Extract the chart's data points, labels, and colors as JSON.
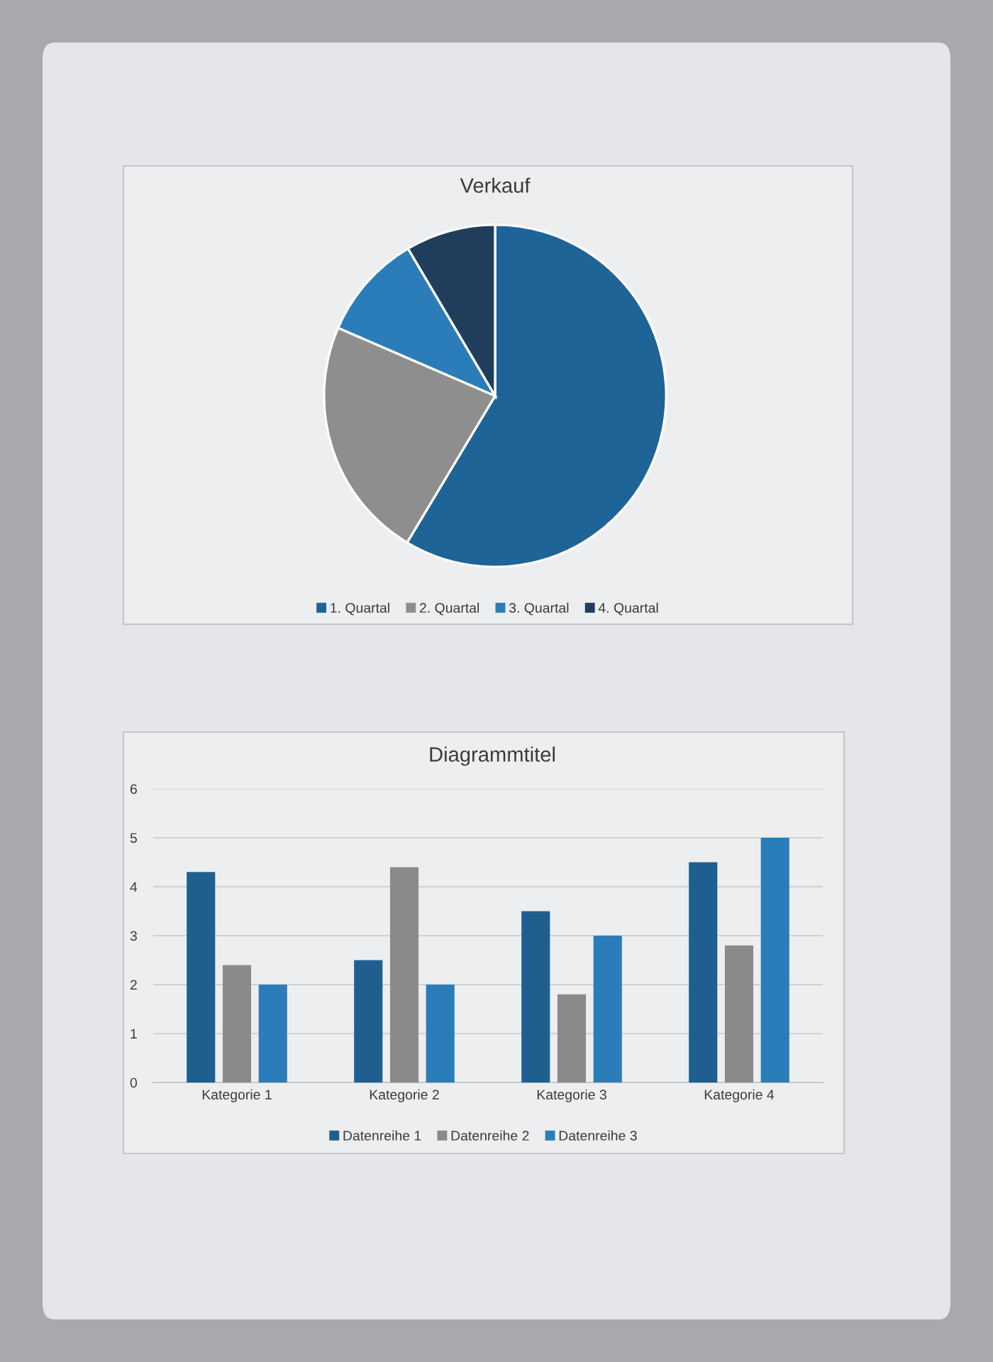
{
  "chart_data": [
    {
      "type": "pie",
      "title": "Verkauf",
      "categories": [
        "1. Quartal",
        "2. Quartal",
        "3. Quartal",
        "4. Quartal"
      ],
      "values": [
        58.6,
        22.9,
        10.0,
        8.5
      ],
      "colors": [
        "#1f6496",
        "#8e8e8e",
        "#2a7db8",
        "#213d5c"
      ],
      "legend": "bottom"
    },
    {
      "type": "bar",
      "title": "Diagrammtitel",
      "categories": [
        "Kategorie 1",
        "Kategorie 2",
        "Kategorie 3",
        "Kategorie 4"
      ],
      "series": [
        {
          "name": "Datenreihe 1",
          "color": "#1f5f8f",
          "values": [
            4.3,
            2.5,
            3.5,
            4.5
          ]
        },
        {
          "name": "Datenreihe 2",
          "color": "#8a8a8a",
          "values": [
            2.4,
            4.4,
            1.8,
            2.8
          ]
        },
        {
          "name": "Datenreihe 3",
          "color": "#2a7db8",
          "values": [
            2,
            2,
            3,
            5
          ]
        }
      ],
      "ylim": [
        0,
        6
      ],
      "yticks": [
        0,
        1,
        2,
        3,
        4,
        5,
        6
      ],
      "grid": "y",
      "legend": "bottom"
    }
  ]
}
